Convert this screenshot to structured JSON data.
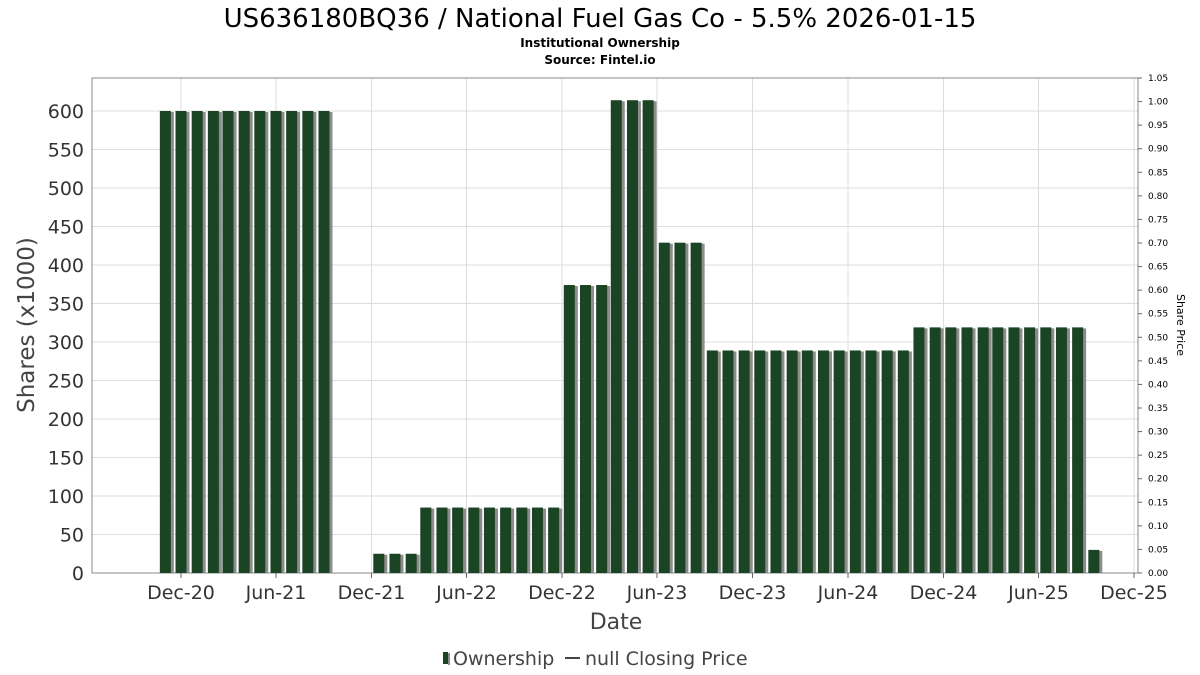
{
  "chart_data": {
    "type": "bar",
    "title": "US636180BQ36 / National Fuel Gas Co - 5.5% 2026-01-15",
    "subtitle": "Institutional Ownership",
    "source": "Source: Fintel.io",
    "xlabel": "Date",
    "ylabel": "Shares (x1000)",
    "y2label": "Share Price",
    "ylim": [
      0,
      625
    ],
    "y2lim": [
      0,
      1.05
    ],
    "yticks": [
      "0",
      "50",
      "100",
      "150",
      "200",
      "250",
      "300",
      "350",
      "400",
      "450",
      "500",
      "550",
      "600"
    ],
    "y2ticks": [
      "0.00",
      "0.05",
      "0.10",
      "0.15",
      "0.20",
      "0.25",
      "0.30",
      "0.35",
      "0.40",
      "0.45",
      "0.50",
      "0.55",
      "0.60",
      "0.65",
      "0.70",
      "0.75",
      "0.80",
      "0.85",
      "0.90",
      "0.95",
      "1.00",
      "1.05"
    ],
    "x_ticks": [
      "Dec-20",
      "Jun-21",
      "Dec-21",
      "Jun-22",
      "Dec-22",
      "Jun-23",
      "Dec-23",
      "Jun-24",
      "Dec-24",
      "Jun-25",
      "Dec-25"
    ],
    "grid": true,
    "legend_position": "bottom",
    "colors": {
      "bar": "#1b4424",
      "bar_shadow": "#8c8c8c",
      "grid": "#dddddd"
    },
    "series": [
      {
        "name": "Ownership",
        "values": [
          {
            "date": "2020-11-01",
            "value": 600
          },
          {
            "date": "2020-12-01",
            "value": 600
          },
          {
            "date": "2021-01-01",
            "value": 600
          },
          {
            "date": "2021-02-01",
            "value": 600
          },
          {
            "date": "2021-03-01",
            "value": 600
          },
          {
            "date": "2021-04-01",
            "value": 600
          },
          {
            "date": "2021-05-01",
            "value": 600
          },
          {
            "date": "2021-06-01",
            "value": 600
          },
          {
            "date": "2021-07-01",
            "value": 600
          },
          {
            "date": "2021-08-01",
            "value": 600
          },
          {
            "date": "2021-09-01",
            "value": 600
          },
          {
            "date": "2021-12-15",
            "value": 25
          },
          {
            "date": "2022-01-15",
            "value": 25
          },
          {
            "date": "2022-02-15",
            "value": 25
          },
          {
            "date": "2022-03-15",
            "value": 85
          },
          {
            "date": "2022-04-15",
            "value": 85
          },
          {
            "date": "2022-05-15",
            "value": 85
          },
          {
            "date": "2022-06-15",
            "value": 85
          },
          {
            "date": "2022-07-15",
            "value": 85
          },
          {
            "date": "2022-08-15",
            "value": 85
          },
          {
            "date": "2022-09-15",
            "value": 85
          },
          {
            "date": "2022-10-15",
            "value": 85
          },
          {
            "date": "2022-11-15",
            "value": 85
          },
          {
            "date": "2022-12-15",
            "value": 374
          },
          {
            "date": "2023-01-15",
            "value": 374
          },
          {
            "date": "2023-02-15",
            "value": 374
          },
          {
            "date": "2023-03-15",
            "value": 614
          },
          {
            "date": "2023-04-15",
            "value": 614
          },
          {
            "date": "2023-05-15",
            "value": 614
          },
          {
            "date": "2023-06-15",
            "value": 429
          },
          {
            "date": "2023-07-15",
            "value": 429
          },
          {
            "date": "2023-08-15",
            "value": 429
          },
          {
            "date": "2023-09-15",
            "value": 289
          },
          {
            "date": "2023-10-15",
            "value": 289
          },
          {
            "date": "2023-11-15",
            "value": 289
          },
          {
            "date": "2023-12-15",
            "value": 289
          },
          {
            "date": "2024-01-15",
            "value": 289
          },
          {
            "date": "2024-02-15",
            "value": 289
          },
          {
            "date": "2024-03-15",
            "value": 289
          },
          {
            "date": "2024-04-15",
            "value": 289
          },
          {
            "date": "2024-05-15",
            "value": 289
          },
          {
            "date": "2024-06-15",
            "value": 289
          },
          {
            "date": "2024-07-15",
            "value": 289
          },
          {
            "date": "2024-08-15",
            "value": 289
          },
          {
            "date": "2024-09-15",
            "value": 289
          },
          {
            "date": "2024-10-15",
            "value": 319
          },
          {
            "date": "2024-11-15",
            "value": 319
          },
          {
            "date": "2024-12-15",
            "value": 319
          },
          {
            "date": "2025-01-15",
            "value": 319
          },
          {
            "date": "2025-02-15",
            "value": 319
          },
          {
            "date": "2025-03-15",
            "value": 319
          },
          {
            "date": "2025-04-15",
            "value": 319
          },
          {
            "date": "2025-05-15",
            "value": 319
          },
          {
            "date": "2025-06-15",
            "value": 319
          },
          {
            "date": "2025-07-15",
            "value": 319
          },
          {
            "date": "2025-08-15",
            "value": 319
          },
          {
            "date": "2025-09-15",
            "value": 30
          }
        ]
      },
      {
        "name": "null Closing Price",
        "values": []
      }
    ]
  },
  "legend": {
    "ownership_label": "Ownership",
    "price_label": "null Closing Price"
  }
}
